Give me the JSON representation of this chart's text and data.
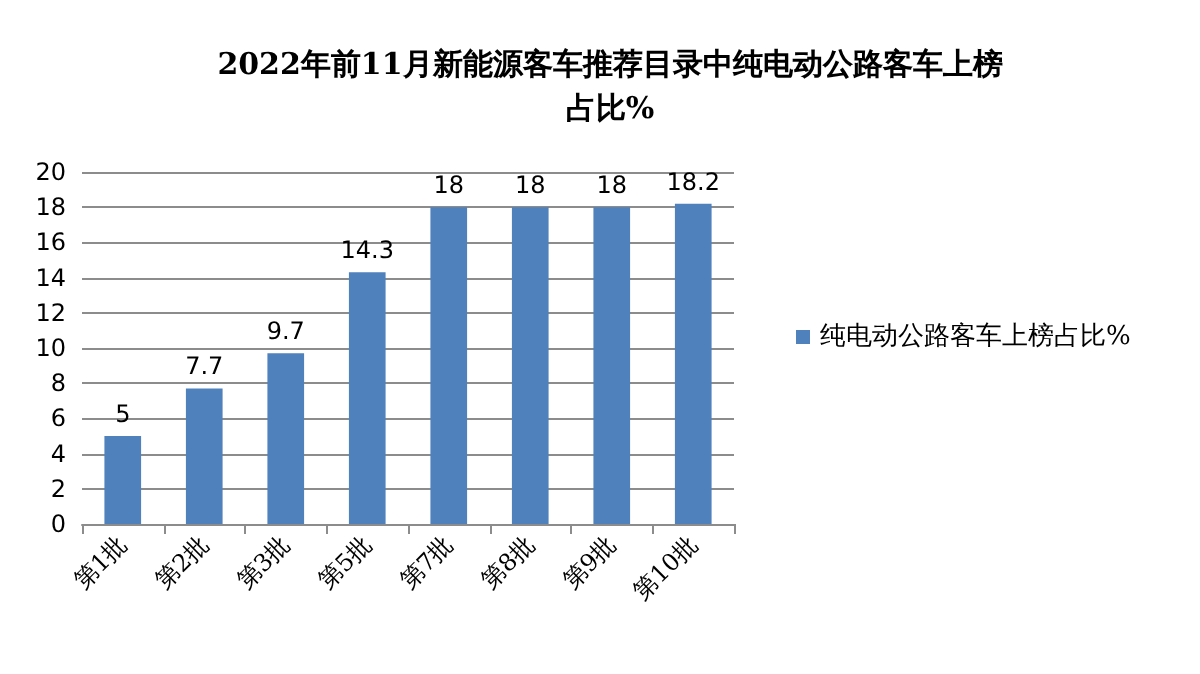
{
  "chart_data": {
    "type": "bar",
    "title": "2022年前11月新能源客车推荐目录中纯电动公路客车上榜占比%",
    "categories": [
      "第1批",
      "第2批",
      "第3批",
      "第5批",
      "第7批",
      "第8批",
      "第9批",
      "第10批"
    ],
    "series": [
      {
        "name": "纯电动公路客车上榜占比%",
        "color": "#4f81bd",
        "values": [
          5,
          7.7,
          9.7,
          14.3,
          18,
          18,
          18,
          18.2
        ]
      }
    ],
    "ylim": [
      0,
      20
    ],
    "yticks": [
      0,
      2,
      4,
      6,
      8,
      10,
      12,
      14,
      16,
      18,
      20
    ],
    "grid": "y",
    "legend": "right",
    "data_labels": true
  }
}
